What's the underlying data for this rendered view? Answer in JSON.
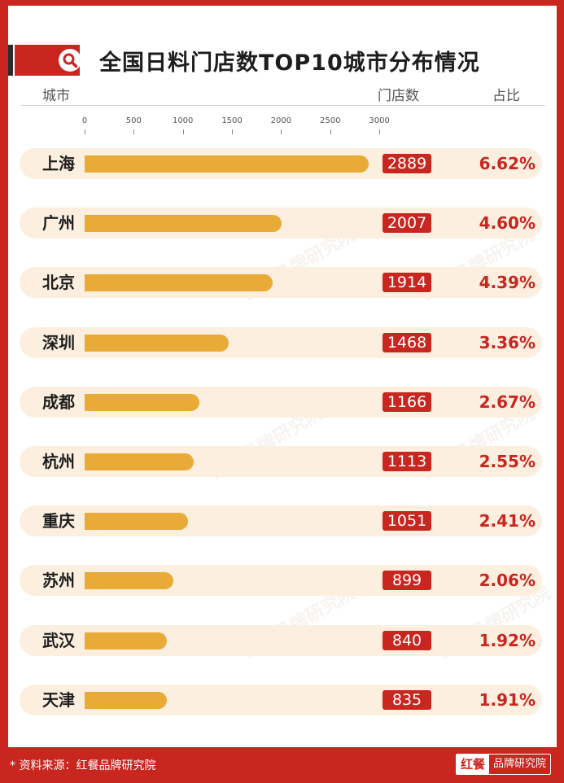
{
  "page": {
    "title": "全国日料门店数TOP10城市分布情况",
    "header_city": "城市",
    "header_stores": "门店数",
    "header_share": "占比",
    "watermark": "红餐品牌研究院",
    "source": "* 资料来源：红餐品牌研究院",
    "logo_mark": "红餐",
    "logo_text": "品牌研究院"
  },
  "colors": {
    "brand_red": "#c8261f",
    "bar": "#e9ab38",
    "row_background": "#fcefdf"
  },
  "chart_data": {
    "type": "bar",
    "orientation": "horizontal",
    "title": "全国日料门店数TOP10城市分布情况",
    "xlabel": "门店数",
    "ylabel": "城市",
    "xlim": [
      0,
      3000
    ],
    "ticks": [
      0,
      500,
      1000,
      1500,
      2000,
      2500,
      3000
    ],
    "categories": [
      "上海",
      "广州",
      "北京",
      "深圳",
      "成都",
      "杭州",
      "重庆",
      "苏州",
      "武汉",
      "天津"
    ],
    "values": [
      2889,
      2007,
      1914,
      1468,
      1166,
      1113,
      1051,
      899,
      840,
      835
    ],
    "shares": [
      "6.62%",
      "4.60%",
      "4.39%",
      "3.36%",
      "2.67%",
      "2.55%",
      "2.41%",
      "2.06%",
      "1.92%",
      "1.91%"
    ]
  }
}
